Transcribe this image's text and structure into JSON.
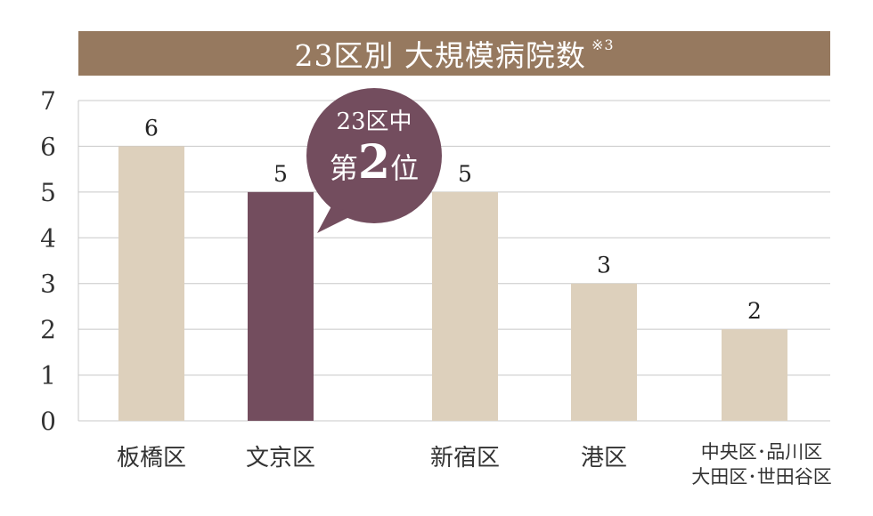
{
  "header": {
    "title": "23区別 大規模病院数",
    "note": "※3"
  },
  "colors": {
    "title_bg": "#96795f",
    "bar_default": "#ddd0bc",
    "bar_highlight": "#734d5e",
    "highlight_text": "#7a4a2a",
    "callout_bg": "#734d5e",
    "grid": "#c8c8c8"
  },
  "callout": {
    "line1": "23区中",
    "line2_prefix": "第",
    "line2_number": "2",
    "line2_suffix": "位"
  },
  "chart_data": {
    "type": "bar",
    "title": "23区別 大規模病院数",
    "categories": [
      "板橋区",
      "文京区",
      "新宿区",
      "港区",
      "中央区･品川区 大田区･世田谷区"
    ],
    "category_lines": [
      [
        "板橋区"
      ],
      [
        "文京区"
      ],
      [
        "新宿区"
      ],
      [
        "港区"
      ],
      [
        "中央区･品川区",
        "大田区･世田谷区"
      ]
    ],
    "values": [
      6,
      5,
      5,
      3,
      2
    ],
    "highlight_index": 1,
    "ylim": [
      0,
      7
    ],
    "yticks": [
      0,
      1,
      2,
      3,
      4,
      5,
      6,
      7
    ],
    "grid": true,
    "data_labels": true
  }
}
